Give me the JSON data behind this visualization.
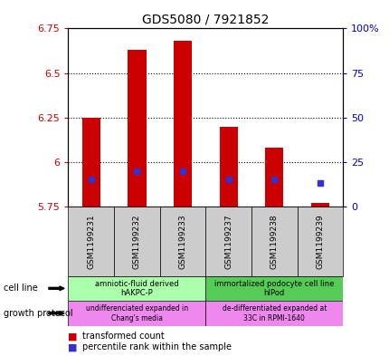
{
  "title": "GDS5080 / 7921852",
  "samples": [
    "GSM1199231",
    "GSM1199232",
    "GSM1199233",
    "GSM1199237",
    "GSM1199238",
    "GSM1199239"
  ],
  "transformed_count": [
    6.25,
    6.63,
    6.68,
    6.2,
    6.08,
    5.77
  ],
  "bar_bottom": 5.75,
  "percentile_rank": [
    15,
    20,
    20,
    15,
    15,
    13
  ],
  "ylim": [
    5.75,
    6.75
  ],
  "yticks": [
    5.75,
    6.0,
    6.25,
    6.5,
    6.75
  ],
  "ytick_labels": [
    "5.75",
    "6",
    "6.25",
    "6.5",
    "6.75"
  ],
  "right_yticks": [
    0,
    25,
    50,
    75,
    100
  ],
  "right_ytick_labels": [
    "0",
    "25",
    "50",
    "75",
    "100%"
  ],
  "bar_color": "#cc0000",
  "blue_color": "#3333cc",
  "sample_box_color": "#cccccc",
  "cell_line_groups": [
    {
      "label": "amniotic-fluid derived\nhAKPC-P",
      "samples": [
        0,
        1,
        2
      ],
      "color": "#aaffaa"
    },
    {
      "label": "immortalized podocyte cell line\nhIPod",
      "samples": [
        3,
        4,
        5
      ],
      "color": "#55cc55"
    }
  ],
  "growth_protocol_groups": [
    {
      "label": "undifferenciated expanded in\nChang's media",
      "samples": [
        0,
        1,
        2
      ],
      "color": "#ee88ee"
    },
    {
      "label": "de-differentiated expanded at\n33C in RPMI-1640",
      "samples": [
        3,
        4,
        5
      ],
      "color": "#ee88ee"
    }
  ],
  "legend_red_label": "transformed count",
  "legend_blue_label": "percentile rank within the sample",
  "cell_line_row_label": "cell line",
  "growth_protocol_row_label": "growth protocol",
  "grid_yticks": [
    6.0,
    6.25,
    6.5
  ],
  "bar_width": 0.4
}
